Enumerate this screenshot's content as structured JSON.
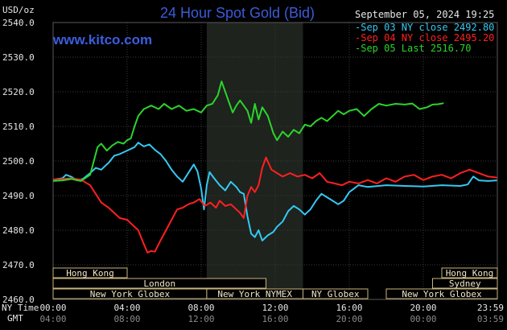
{
  "chart_data": {
    "type": "line",
    "title": "24 Hour Spot Gold (Bid)",
    "site": "www.kitco.com",
    "date_label": "September 05, 2024 19:25",
    "ylabel": "USD/oz",
    "ylim": [
      2460,
      2540
    ],
    "yticks": [
      "2540.0",
      "2530.0",
      "2520.0",
      "2510.0",
      "2500.0",
      "2490.0",
      "2480.0",
      "2470.0",
      "2460.0"
    ],
    "xlabel_rows": {
      "ny_label": "NY Time",
      "gmt_label": "GMT",
      "ny_ticks": [
        "00:00",
        "04:00",
        "08:00",
        "12:00",
        "16:00",
        "20:00",
        "23:59"
      ],
      "gmt_ticks": [
        "04:00",
        "08:00",
        "12:00",
        "16:00",
        "20:00",
        "00:00",
        "03:59"
      ]
    },
    "x_unit": "hours since 00:00 NY time",
    "xlim": [
      0,
      24
    ],
    "shade_x": [
      8.3,
      13.5
    ],
    "grid": true,
    "series": [
      {
        "name": "Sep 03 NY close 2492.80",
        "color": "#35c8f2",
        "points": [
          [
            0,
            2494.6
          ],
          [
            0.5,
            2495.0
          ],
          [
            0.7,
            2496.0
          ],
          [
            1.0,
            2495.4
          ],
          [
            1.3,
            2494.4
          ],
          [
            1.6,
            2494.8
          ],
          [
            2.0,
            2496.5
          ],
          [
            2.3,
            2498.0
          ],
          [
            2.6,
            2497.5
          ],
          [
            3.0,
            2499.5
          ],
          [
            3.3,
            2501.5
          ],
          [
            3.6,
            2502.0
          ],
          [
            4.0,
            2503.0
          ],
          [
            4.4,
            2504.0
          ],
          [
            4.6,
            2505.3
          ],
          [
            4.9,
            2504.2
          ],
          [
            5.2,
            2504.8
          ],
          [
            5.5,
            2503.2
          ],
          [
            5.8,
            2502.0
          ],
          [
            6.1,
            2500.0
          ],
          [
            6.4,
            2497.5
          ],
          [
            6.7,
            2495.5
          ],
          [
            7.0,
            2494.0
          ],
          [
            7.3,
            2496.5
          ],
          [
            7.6,
            2499.0
          ],
          [
            7.8,
            2497.0
          ],
          [
            8.0,
            2492.0
          ],
          [
            8.15,
            2486.0
          ],
          [
            8.3,
            2493.0
          ],
          [
            8.45,
            2496.8
          ],
          [
            8.7,
            2495.0
          ],
          [
            9.0,
            2493.0
          ],
          [
            9.3,
            2491.5
          ],
          [
            9.6,
            2494.0
          ],
          [
            9.9,
            2492.5
          ],
          [
            10.1,
            2491.0
          ],
          [
            10.3,
            2490.5
          ],
          [
            10.5,
            2484.0
          ],
          [
            10.7,
            2479.0
          ],
          [
            10.9,
            2478.0
          ],
          [
            11.1,
            2480.0
          ],
          [
            11.3,
            2477.0
          ],
          [
            11.6,
            2478.5
          ],
          [
            11.9,
            2479.5
          ],
          [
            12.1,
            2481.0
          ],
          [
            12.4,
            2482.5
          ],
          [
            12.7,
            2485.5
          ],
          [
            13.0,
            2487.0
          ],
          [
            13.3,
            2486.0
          ],
          [
            13.6,
            2484.5
          ],
          [
            13.9,
            2486.0
          ],
          [
            14.2,
            2488.5
          ],
          [
            14.5,
            2490.5
          ],
          [
            14.8,
            2489.5
          ],
          [
            15.1,
            2488.5
          ],
          [
            15.4,
            2487.5
          ],
          [
            15.7,
            2488.5
          ],
          [
            16.0,
            2491.0
          ],
          [
            16.5,
            2493.0
          ],
          [
            17.0,
            2492.5
          ],
          [
            18.0,
            2493.0
          ],
          [
            19.0,
            2492.8
          ],
          [
            20.0,
            2492.6
          ],
          [
            21.0,
            2493.0
          ],
          [
            22.0,
            2492.8
          ],
          [
            22.4,
            2493.2
          ],
          [
            22.7,
            2495.5
          ],
          [
            23.0,
            2494.4
          ],
          [
            23.5,
            2494.2
          ],
          [
            23.98,
            2494.4
          ]
        ]
      },
      {
        "name": "Sep 04 NY close 2495.20",
        "color": "#ff2020",
        "points": [
          [
            0,
            2494.6
          ],
          [
            0.5,
            2494.8
          ],
          [
            1.0,
            2495.0
          ],
          [
            1.5,
            2494.6
          ],
          [
            2.0,
            2493.0
          ],
          [
            2.3,
            2490.5
          ],
          [
            2.6,
            2488.0
          ],
          [
            3.0,
            2486.5
          ],
          [
            3.3,
            2485.0
          ],
          [
            3.6,
            2483.5
          ],
          [
            4.0,
            2483.0
          ],
          [
            4.3,
            2481.5
          ],
          [
            4.6,
            2480.0
          ],
          [
            4.9,
            2476.0
          ],
          [
            5.1,
            2473.5
          ],
          [
            5.3,
            2474.0
          ],
          [
            5.5,
            2473.8
          ],
          [
            5.8,
            2477.0
          ],
          [
            6.1,
            2480.0
          ],
          [
            6.4,
            2483.0
          ],
          [
            6.7,
            2486.0
          ],
          [
            7.0,
            2486.5
          ],
          [
            7.3,
            2487.5
          ],
          [
            7.6,
            2488.0
          ],
          [
            7.9,
            2489.0
          ],
          [
            8.2,
            2487.0
          ],
          [
            8.5,
            2488.0
          ],
          [
            8.8,
            2486.5
          ],
          [
            9.0,
            2488.5
          ],
          [
            9.3,
            2487.0
          ],
          [
            9.6,
            2487.5
          ],
          [
            9.9,
            2486.0
          ],
          [
            10.1,
            2485.0
          ],
          [
            10.3,
            2483.5
          ],
          [
            10.5,
            2490.0
          ],
          [
            10.7,
            2492.5
          ],
          [
            10.9,
            2491.0
          ],
          [
            11.1,
            2493.0
          ],
          [
            11.3,
            2498.0
          ],
          [
            11.5,
            2501.0
          ],
          [
            11.8,
            2497.5
          ],
          [
            12.1,
            2496.5
          ],
          [
            12.4,
            2495.5
          ],
          [
            12.8,
            2496.5
          ],
          [
            13.2,
            2495.5
          ],
          [
            13.6,
            2496.0
          ],
          [
            14.0,
            2495.0
          ],
          [
            14.4,
            2496.5
          ],
          [
            14.8,
            2494.0
          ],
          [
            15.2,
            2493.5
          ],
          [
            15.6,
            2493.0
          ],
          [
            16.0,
            2494.0
          ],
          [
            16.5,
            2493.5
          ],
          [
            17.0,
            2494.5
          ],
          [
            17.5,
            2493.5
          ],
          [
            18.0,
            2495.0
          ],
          [
            18.5,
            2494.0
          ],
          [
            19.0,
            2495.5
          ],
          [
            19.5,
            2496.0
          ],
          [
            20.0,
            2494.5
          ],
          [
            20.5,
            2495.5
          ],
          [
            21.0,
            2496.0
          ],
          [
            21.5,
            2495.0
          ],
          [
            22.0,
            2496.5
          ],
          [
            22.5,
            2497.5
          ],
          [
            23.0,
            2496.5
          ],
          [
            23.5,
            2495.5
          ],
          [
            23.98,
            2495.2
          ]
        ]
      },
      {
        "name": "Sep 05 Last 2516.70",
        "color": "#2bd42b",
        "points": [
          [
            0,
            2494.2
          ],
          [
            0.5,
            2494.4
          ],
          [
            1.0,
            2494.8
          ],
          [
            1.5,
            2494.2
          ],
          [
            2.0,
            2496.0
          ],
          [
            2.2,
            2500.0
          ],
          [
            2.4,
            2504.0
          ],
          [
            2.6,
            2505.0
          ],
          [
            2.9,
            2503.0
          ],
          [
            3.2,
            2504.5
          ],
          [
            3.5,
            2505.5
          ],
          [
            3.8,
            2505.0
          ],
          [
            4.0,
            2506.0
          ],
          [
            4.2,
            2506.5
          ],
          [
            4.4,
            2510.0
          ],
          [
            4.6,
            2513.0
          ],
          [
            4.9,
            2515.0
          ],
          [
            5.3,
            2516.0
          ],
          [
            5.7,
            2515.0
          ],
          [
            6.0,
            2516.5
          ],
          [
            6.4,
            2515.0
          ],
          [
            6.8,
            2516.0
          ],
          [
            7.2,
            2514.5
          ],
          [
            7.6,
            2515.0
          ],
          [
            8.0,
            2514.0
          ],
          [
            8.3,
            2516.0
          ],
          [
            8.6,
            2516.5
          ],
          [
            8.9,
            2519.0
          ],
          [
            9.1,
            2523.0
          ],
          [
            9.3,
            2520.0
          ],
          [
            9.5,
            2517.0
          ],
          [
            9.7,
            2514.0
          ],
          [
            9.9,
            2516.0
          ],
          [
            10.1,
            2517.5
          ],
          [
            10.3,
            2516.0
          ],
          [
            10.5,
            2514.5
          ],
          [
            10.7,
            2511.0
          ],
          [
            10.9,
            2516.5
          ],
          [
            11.1,
            2512.0
          ],
          [
            11.3,
            2515.5
          ],
          [
            11.6,
            2513.0
          ],
          [
            11.9,
            2508.0
          ],
          [
            12.1,
            2506.0
          ],
          [
            12.4,
            2508.5
          ],
          [
            12.7,
            2507.0
          ],
          [
            13.0,
            2509.0
          ],
          [
            13.3,
            2508.0
          ],
          [
            13.6,
            2510.5
          ],
          [
            13.9,
            2510.0
          ],
          [
            14.2,
            2511.5
          ],
          [
            14.5,
            2512.5
          ],
          [
            14.8,
            2511.5
          ],
          [
            15.1,
            2513.0
          ],
          [
            15.4,
            2514.5
          ],
          [
            15.7,
            2513.5
          ],
          [
            16.0,
            2514.5
          ],
          [
            16.4,
            2515.0
          ],
          [
            16.8,
            2513.0
          ],
          [
            17.2,
            2515.0
          ],
          [
            17.6,
            2516.5
          ],
          [
            18.0,
            2516.0
          ],
          [
            18.5,
            2516.5
          ],
          [
            19.0,
            2516.3
          ],
          [
            19.4,
            2516.6
          ],
          [
            19.8,
            2515.0
          ],
          [
            20.2,
            2515.5
          ],
          [
            20.5,
            2516.3
          ],
          [
            20.8,
            2516.4
          ],
          [
            21.1,
            2516.7
          ]
        ]
      }
    ],
    "markets": {
      "row1": [
        {
          "label": "Hong Kong",
          "start": 0,
          "end": 4.0
        },
        {
          "label": "Hong Kong",
          "start": 21.0,
          "end": 24
        }
      ],
      "row2": [
        {
          "label": "London",
          "start": 0,
          "end": 11.5
        },
        {
          "label": "Sydney",
          "start": 20.5,
          "end": 24
        }
      ],
      "row3": [
        {
          "label": "New York Globex",
          "start": 0,
          "end": 8.3
        },
        {
          "label": "New York NYMEX",
          "start": 8.3,
          "end": 13.5
        },
        {
          "label": "NY Globex",
          "start": 13.5,
          "end": 17.0
        },
        {
          "label": "New York Globex",
          "start": 18.0,
          "end": 24
        }
      ]
    }
  }
}
